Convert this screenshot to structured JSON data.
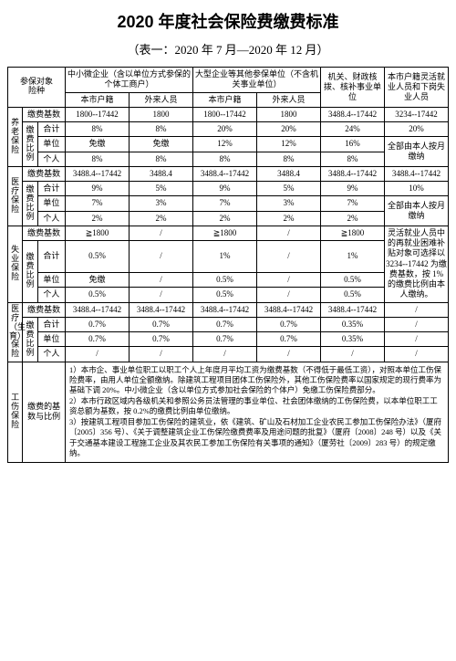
{
  "title": "2020 年度社会保险费缴费标准",
  "subtitle": "（表一：2020 年 7 月—2020 年 12 月）",
  "header": {
    "side": "参保对象\n险种",
    "group1": "中小微企业（含以单位方式参保的个体工商户）",
    "group2": "大型企业等其他参保单位（不含机关事业单位）",
    "group3": "机关、财政核拨、核补事业单位",
    "group4": "本市户籍灵活就业人员和下岗失业人员",
    "g1c1": "本市户籍",
    "g1c2": "外来人员",
    "g2c1": "本市户籍",
    "g2c2": "外来人员"
  },
  "labels": {
    "base": "缴费基数",
    "ratio": "缴\n费\n比\n例",
    "total": "合计",
    "unit": "单位",
    "person": "个人",
    "ratio_base": "缴费的\n基数"
  },
  "pension": {
    "name": "养\n老\n保\n险",
    "base": [
      "1800--17442",
      "1800",
      "1800--17442",
      "1800",
      "3488.4--17442",
      "3234--17442"
    ],
    "total": [
      "8%",
      "8%",
      "20%",
      "20%",
      "24%",
      "20%"
    ],
    "unit": [
      "免缴",
      "免缴",
      "12%",
      "12%",
      "16%"
    ],
    "person": [
      "8%",
      "8%",
      "8%",
      "8%",
      "8%"
    ],
    "note": "全部由本人按月缴纳"
  },
  "medical": {
    "name": "医\n疗\n保\n险",
    "base": [
      "3488.4--17442",
      "3488.4",
      "3488.4--17442",
      "3488.4",
      "3488.4--17442",
      "3488.4--17442"
    ],
    "total": [
      "9%",
      "5%",
      "9%",
      "5%",
      "9%",
      "10%"
    ],
    "unit": [
      "7%",
      "3%",
      "7%",
      "3%",
      "7%"
    ],
    "person": [
      "2%",
      "2%",
      "2%",
      "2%",
      "2%"
    ],
    "note": "全部由本人按月缴纳"
  },
  "unemp": {
    "name": "失\n业\n保\n险",
    "base": [
      "≧1800",
      "/",
      "≧1800",
      "/",
      "≧1800"
    ],
    "total": [
      "0.5%",
      "/",
      "1%",
      "/",
      "1%",
      "1%"
    ],
    "unit": [
      "免缴",
      "/",
      "0.5%",
      "/",
      "0.5%"
    ],
    "person": [
      "0.5%",
      "/",
      "0.5%",
      "/",
      "0.5%"
    ],
    "note": "灵活就业人员中的再就业困难补贴对象可选择以 3234--17442 为缴费基数，按 1%的缴费比例由本人缴纳。"
  },
  "maternity": {
    "name": "医\n疗\n（生\n育）\n保\n险",
    "base": [
      "3488.4--17442",
      "3488.4--17442",
      "3488.4--17442",
      "3488.4--17442",
      "3488.4--17442",
      "/"
    ],
    "total": [
      "0.7%",
      "0.7%",
      "0.7%",
      "0.7%",
      "0.35%",
      "/"
    ],
    "unit": [
      "0.7%",
      "0.7%",
      "0.7%",
      "0.7%",
      "0.35%",
      "/"
    ],
    "person": [
      "/",
      "/",
      "/",
      "/",
      "/",
      "/"
    ]
  },
  "injury": {
    "name": "工\n伤\n保\n险",
    "label": "缴费的基数与比例",
    "notes": "1）本市企、事业单位职工以职工个人上年度月平均工资为缴费基数（不得低于最低工资），对照本单位工伤保险费率，由用人单位全额缴纳。除建筑工程项目团体工伤保险外，其他工伤保险费率以国家规定的现行费率为基础下调 20%。中小微企业（含以单位方式参加社会保险的个体户）免缴工伤保险费部分。\n2）本市行政区域内各级机关和参照公务员法管理的事业单位、社会团体缴纳的工伤保险费，以本单位职工工资总额为基数，按 0.2%的缴费比例由单位缴纳。\n3）按建筑工程项目参加工伤保险的建筑业，依《建筑、矿山及石材加工企业农民工参加工伤保险办法》（厦府〔2005〕356 号）、《关于调整建筑企业工伤保险缴费费率及用途问题的批复》（厦府〔2008〕248 号）以及《关于交通基本建设工程施工企业及其农民工参加工伤保险有关事项的通知》（厦劳社〔2009〕283 号）的规定缴纳。"
  },
  "colors": {
    "border": "#000000",
    "bg": "#ffffff",
    "text": "#000000"
  }
}
